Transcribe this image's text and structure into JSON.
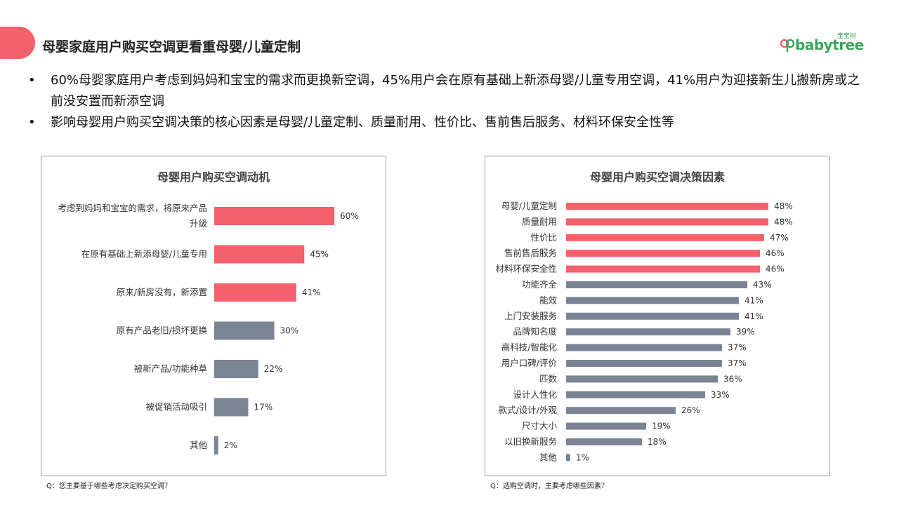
{
  "page": {
    "title": "母婴家庭用户购买空调更看重母婴/儿童定制",
    "logo_text": "babytree",
    "logo_sub": "宝宝树"
  },
  "bullets": [
    "60%母婴家庭用户考虑到妈妈和宝宝的需求而更换新空调，45%用户会在原有基础上新添母婴/儿童专用空调，41%用户为迎接新生儿搬新房或之前没安置而新添空调",
    "影响母婴用户购买空调决策的核心因素是母婴/儿童定制、质量耐用、性价比、售前售后服务、材料环保安全性等"
  ],
  "bullet_symbol": "•",
  "colors": {
    "accent": "#f4606c",
    "highlight": "#f4606c",
    "neutral": "#7a8494"
  },
  "chart_data": [
    {
      "type": "bar",
      "orientation": "horizontal",
      "title": "母婴用户购买空调动机",
      "categories": [
        "考虑到妈妈和宝宝的需求，将原来产品升级",
        "在原有基础上新添母婴/儿童专用",
        "原来/新房没有，新添置",
        "原有产品老旧/损坏更换",
        "被新产品/功能种草",
        "被促销活动吸引",
        "其他"
      ],
      "values": [
        60,
        45,
        41,
        30,
        22,
        17,
        2
      ],
      "value_labels": [
        "60%",
        "45%",
        "41%",
        "30%",
        "22%",
        "17%",
        "2%"
      ],
      "highlight_count": 3,
      "xlim": [
        0,
        100
      ],
      "unit": "%",
      "note": "Q：您主要基于哪些考虑决定购买空调？"
    },
    {
      "type": "bar",
      "orientation": "horizontal",
      "title": "母婴用户购买空调决策因素",
      "categories": [
        "母婴/儿童定制",
        "质量耐用",
        "性价比",
        "售前售后服务",
        "材料环保安全性",
        "功能齐全",
        "能效",
        "上门安装服务",
        "品牌知名度",
        "高科技/智能化",
        "用户口碑/评价",
        "匹数",
        "设计人性化",
        "款式/设计/外观",
        "尺寸大小",
        "以旧换新服务",
        "其他"
      ],
      "values": [
        48,
        48,
        47,
        46,
        46,
        43,
        41,
        41,
        39,
        37,
        37,
        36,
        33,
        26,
        19,
        18,
        1
      ],
      "value_labels": [
        "48%",
        "48%",
        "47%",
        "46%",
        "46%",
        "43%",
        "41%",
        "41%",
        "39%",
        "37%",
        "37%",
        "36%",
        "33%",
        "26%",
        "19%",
        "18%",
        "1%"
      ],
      "highlight_count": 5,
      "xlim": [
        0,
        100
      ],
      "unit": "%",
      "note": "Q：选购空调时，主要考虑哪些因素？"
    }
  ]
}
